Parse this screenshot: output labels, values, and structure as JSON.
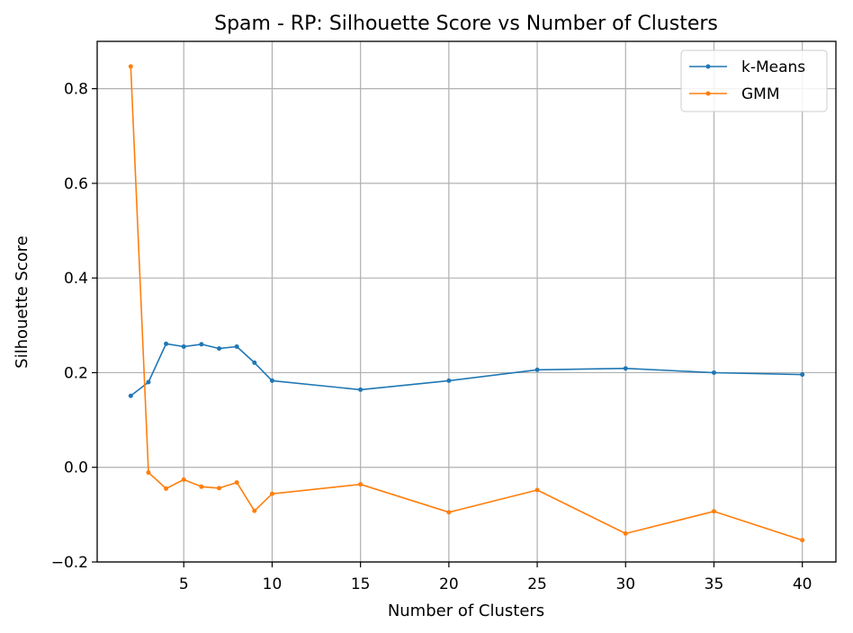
{
  "chart_data": {
    "type": "line",
    "title": "Spam - RP: Silhouette Score vs Number of Clusters",
    "xlabel": "Number of Clusters",
    "ylabel": "Silhouette Score",
    "xlim": [
      0.1,
      41.9
    ],
    "ylim": [
      -0.2,
      0.9
    ],
    "xticks": [
      5,
      10,
      15,
      20,
      25,
      30,
      35,
      40
    ],
    "yticks": [
      -0.2,
      0.0,
      0.2,
      0.4,
      0.6,
      0.8
    ],
    "ytick_labels": [
      "−0.2",
      "0.0",
      "0.2",
      "0.4",
      "0.6",
      "0.8"
    ],
    "grid": true,
    "legend_position": "top-right",
    "x": [
      2,
      3,
      4,
      5,
      6,
      7,
      8,
      9,
      10,
      15,
      20,
      25,
      30,
      35,
      40
    ],
    "series": [
      {
        "name": "k-Means",
        "color": "#1f77b4",
        "values": [
          0.151,
          0.18,
          0.261,
          0.255,
          0.26,
          0.251,
          0.255,
          0.221,
          0.183,
          0.164,
          0.183,
          0.206,
          0.209,
          0.2,
          0.196
        ]
      },
      {
        "name": "GMM",
        "color": "#ff7f0e",
        "values": [
          0.847,
          -0.011,
          -0.045,
          -0.026,
          -0.041,
          -0.044,
          -0.032,
          -0.092,
          -0.056,
          -0.036,
          -0.095,
          -0.048,
          -0.14,
          -0.093,
          -0.154
        ]
      }
    ]
  }
}
